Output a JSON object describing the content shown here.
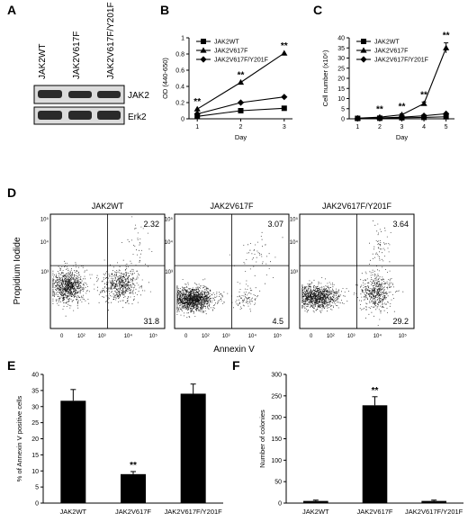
{
  "panel_letters": {
    "a": "A",
    "b": "B",
    "c": "C",
    "d": "D",
    "e": "E",
    "f": "F"
  },
  "significance_marker": "**",
  "colors": {
    "ink": "#000000",
    "background": "#ffffff",
    "blot_band": "#2a2a2a"
  },
  "panel_a": {
    "lanes": [
      "JAK2WT",
      "JAK2V617F",
      "JAK2V617F/Y201F"
    ],
    "blots": [
      "JAK2",
      "Erk2"
    ]
  },
  "chart_data": [
    {
      "id": "B",
      "type": "line",
      "xlabel": "Day",
      "ylabel": "OD (440-650)",
      "x": [
        1,
        2,
        3
      ],
      "xticks": [
        "1",
        "2",
        "3"
      ],
      "ylim": [
        0,
        1
      ],
      "yticks": [
        "0",
        "0.2",
        "0.4",
        "0.6",
        "0.8",
        "1"
      ],
      "legend_position": "top-left",
      "series": [
        {
          "name": "JAK2WT",
          "marker": "square",
          "values": [
            0.03,
            0.1,
            0.13
          ]
        },
        {
          "name": "JAK2V617F",
          "marker": "triangle",
          "values": [
            0.12,
            0.45,
            0.81
          ]
        },
        {
          "name": "JAK2V617F/Y201F",
          "marker": "diamond",
          "values": [
            0.06,
            0.2,
            0.27
          ]
        }
      ],
      "significance_at": [
        1,
        2,
        3
      ],
      "sig_series": 1
    },
    {
      "id": "C",
      "type": "line",
      "xlabel": "Day",
      "ylabel": "Cell number (x10⁶)",
      "x": [
        1,
        2,
        3,
        4,
        5
      ],
      "xticks": [
        "1",
        "2",
        "3",
        "4",
        "5"
      ],
      "ylim": [
        0,
        40
      ],
      "yticks": [
        "0",
        "5",
        "10",
        "15",
        "20",
        "25",
        "30",
        "35",
        "40"
      ],
      "legend_position": "top-left",
      "series": [
        {
          "name": "JAK2WT",
          "marker": "square",
          "values": [
            0.2,
            0.3,
            0.5,
            0.7,
            1.0
          ]
        },
        {
          "name": "JAK2V617F",
          "marker": "triangle",
          "values": [
            0.3,
            0.8,
            2.0,
            7.5,
            35.0
          ],
          "errors": [
            0,
            0.3,
            0.5,
            0.8,
            2.5
          ]
        },
        {
          "name": "JAK2V617F/Y201F",
          "marker": "diamond",
          "values": [
            0.2,
            0.4,
            0.8,
            1.5,
            2.5
          ]
        }
      ],
      "significance_at": [
        2,
        3,
        4,
        5
      ],
      "sig_series": 1
    },
    {
      "id": "E",
      "type": "bar",
      "ylabel": "% of Annexin V positive cells",
      "categories": [
        "JAK2WT",
        "JAK2V617F",
        "JAK2V617F/Y201F"
      ],
      "values": [
        31.8,
        9.0,
        34.0
      ],
      "errors": [
        3.5,
        0.8,
        3.0
      ],
      "ylim": [
        0,
        40
      ],
      "yticks": [
        "0",
        "5",
        "10",
        "15",
        "20",
        "25",
        "30",
        "35",
        "40"
      ],
      "significance_index": 1
    },
    {
      "id": "F",
      "type": "bar",
      "ylabel": "Number of colonies",
      "categories": [
        "JAK2WT",
        "JAK2V617F",
        "JAK2V617F/Y201F"
      ],
      "values": [
        5,
        228,
        5
      ],
      "errors": [
        2,
        20,
        2
      ],
      "ylim": [
        0,
        300
      ],
      "yticks": [
        "0",
        "50",
        "100",
        "150",
        "200",
        "250",
        "300"
      ],
      "significance_index": 1
    }
  ],
  "panel_d": {
    "ylabel": "Propidium Iodide",
    "xlabel": "Annexin V",
    "xticks": [
      "0",
      "10²",
      "10³",
      "10⁴",
      "10⁵"
    ],
    "yticks": [
      "10³",
      "10⁴",
      "10⁵"
    ],
    "plots": [
      {
        "title": "JAK2WT",
        "upper_right": "2.32",
        "lower_right": "31.8"
      },
      {
        "title": "JAK2V617F",
        "upper_right": "3.07",
        "lower_right": "4.5"
      },
      {
        "title": "JAK2V617F/Y201F",
        "upper_right": "3.64",
        "lower_right": "29.2"
      }
    ]
  }
}
